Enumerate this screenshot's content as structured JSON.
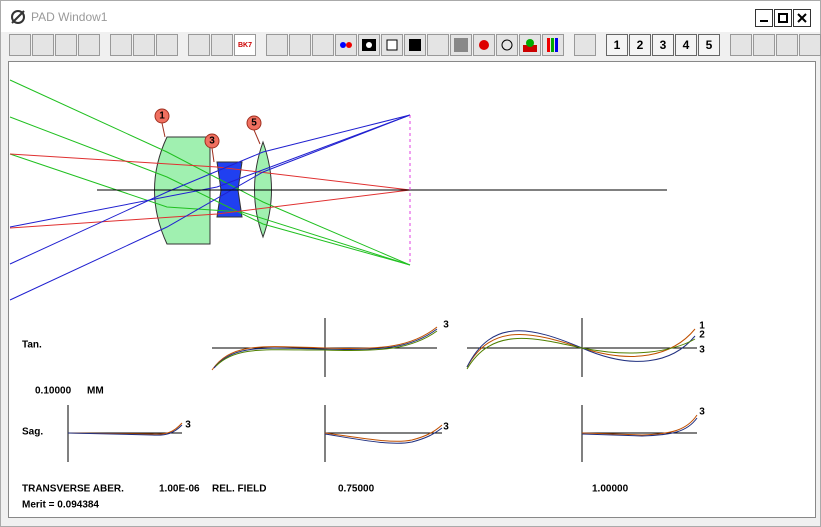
{
  "window": {
    "title": "PAD Window1"
  },
  "toolbar": {
    "glass_icon": "BK7",
    "buttons": [
      "1",
      "2",
      "3",
      "4",
      "5"
    ]
  },
  "lens_drawing": {
    "surface_labels": [
      "1",
      "3",
      "5"
    ]
  },
  "plots": {
    "tan_label": "Tan.",
    "sag_label": "Sag.",
    "scale_value": "0.10000",
    "scale_unit": "MM",
    "tan": [
      {
        "curve_labels": [
          "3"
        ]
      },
      {
        "curve_labels": [
          "1",
          "2",
          "3"
        ]
      }
    ],
    "sag": [
      {
        "curve_labels": [
          "3"
        ]
      },
      {
        "curve_labels": [
          "3"
        ]
      },
      {
        "curve_labels": [
          "3"
        ]
      }
    ]
  },
  "footer": {
    "label": "TRANSVERSE ABER.",
    "wavelength": "1.00E-06",
    "field_label": "REL. FIELD",
    "fields": [
      "0.75000",
      "1.00000"
    ],
    "merit": "Merit = 0.094384"
  }
}
